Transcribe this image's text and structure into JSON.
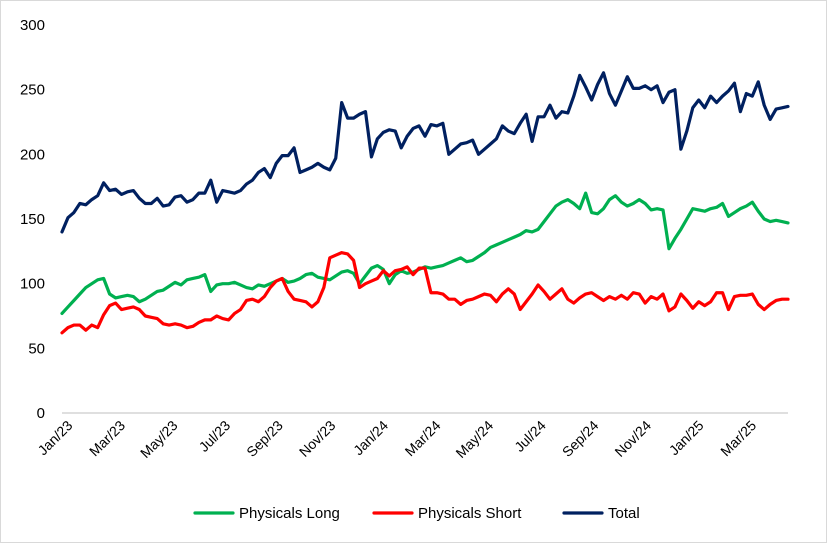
{
  "chart_data": {
    "type": "line",
    "title": "",
    "xlabel": "",
    "ylabel": "",
    "ylim": [
      0,
      300
    ],
    "yticks": [
      0,
      50,
      100,
      150,
      200,
      250,
      300
    ],
    "yticks_labels": [
      "0",
      "50",
      "100",
      "150",
      "200",
      "250",
      "300"
    ],
    "x_start": "2023-01",
    "x_end": "2025-05",
    "x_tick_labels": [
      "Jan/23",
      "Mar/23",
      "May/23",
      "Jul/23",
      "Sep/23",
      "Nov/23",
      "Jan/24",
      "Mar/24",
      "May/24",
      "Jul/24",
      "Sep/24",
      "Nov/24",
      "Jan/25",
      "Mar/25"
    ],
    "grid": false,
    "legend_position": "bottom",
    "series": [
      {
        "name": "Physicals Long",
        "color": "#00b050",
        "values": [
          77,
          82,
          87,
          92,
          97,
          100,
          103,
          104,
          92,
          89,
          90,
          91,
          90,
          86,
          88,
          91,
          94,
          95,
          98,
          101,
          99,
          103,
          104,
          105,
          107,
          94,
          99,
          100,
          100,
          101,
          99,
          97,
          96,
          99,
          98,
          100,
          102,
          104,
          101,
          102,
          104,
          107,
          108,
          105,
          104,
          103,
          106,
          109,
          110,
          108,
          100,
          106,
          112,
          114,
          111,
          100,
          107,
          110,
          108,
          109,
          111,
          113,
          112,
          113,
          114,
          116,
          118,
          120,
          117,
          118,
          121,
          124,
          128,
          130,
          132,
          134,
          136,
          138,
          141,
          140,
          142,
          148,
          154,
          160,
          163,
          165,
          162,
          158,
          170,
          155,
          154,
          158,
          165,
          168,
          163,
          160,
          162,
          165,
          162,
          157,
          158,
          157,
          127,
          135,
          142,
          150,
          158,
          157,
          156,
          158,
          159,
          162,
          152,
          155,
          158,
          160,
          163,
          156,
          150,
          148,
          149,
          148,
          147
        ],
        "values_note": ""
      },
      {
        "name": "Physicals Short",
        "color": "#ff0000",
        "values": [
          62,
          66,
          68,
          68,
          64,
          68,
          66,
          76,
          83,
          85,
          80,
          81,
          82,
          80,
          75,
          74,
          73,
          69,
          68,
          69,
          68,
          66,
          67,
          70,
          72,
          72,
          75,
          73,
          72,
          77,
          80,
          87,
          88,
          86,
          90,
          97,
          102,
          104,
          94,
          88,
          87,
          86,
          82,
          86,
          97,
          120,
          122,
          124,
          123,
          118,
          97,
          100,
          102,
          104,
          110,
          106,
          110,
          111,
          113,
          107,
          112,
          112,
          93,
          93,
          92,
          88,
          88,
          84,
          87,
          88,
          90,
          92,
          91,
          86,
          92,
          96,
          92,
          80,
          86,
          92,
          99,
          94,
          88,
          92,
          96,
          88,
          85,
          89,
          92,
          93,
          90,
          87,
          90,
          88,
          91,
          88,
          93,
          92,
          85,
          90,
          88,
          92,
          79,
          82,
          92,
          87,
          81,
          86,
          83,
          86,
          93,
          93,
          80,
          90,
          91,
          91,
          92,
          84,
          80,
          84,
          87,
          88,
          88
        ]
      },
      {
        "name": "Total",
        "color": "#002060",
        "values": [
          140,
          151,
          155,
          162,
          161,
          165,
          168,
          178,
          172,
          173,
          169,
          171,
          172,
          166,
          162,
          162,
          166,
          160,
          161,
          167,
          168,
          163,
          165,
          170,
          170,
          180,
          163,
          172,
          171,
          170,
          172,
          177,
          180,
          186,
          189,
          182,
          193,
          199,
          199,
          205,
          186,
          188,
          190,
          193,
          190,
          188,
          197,
          240,
          228,
          228,
          231,
          233,
          198,
          212,
          217,
          219,
          218,
          205,
          214,
          220,
          222,
          214,
          223,
          222,
          224,
          200,
          204,
          208,
          209,
          211,
          200,
          204,
          208,
          212,
          222,
          218,
          216,
          224,
          231,
          210,
          229,
          229,
          238,
          228,
          233,
          232,
          245,
          261,
          252,
          242,
          254,
          263,
          247,
          238,
          249,
          260,
          251,
          251,
          253,
          250,
          253,
          240,
          248,
          250,
          204,
          218,
          236,
          242,
          236,
          245,
          240,
          245,
          249,
          255,
          233,
          247,
          245,
          256,
          238,
          227,
          235,
          236,
          237
        ]
      }
    ]
  }
}
